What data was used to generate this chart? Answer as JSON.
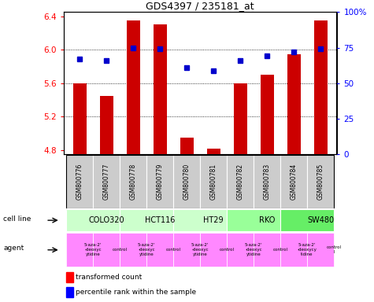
{
  "title": "GDS4397 / 235181_at",
  "samples": [
    "GSM800776",
    "GSM800777",
    "GSM800778",
    "GSM800779",
    "GSM800780",
    "GSM800781",
    "GSM800782",
    "GSM800783",
    "GSM800784",
    "GSM800785"
  ],
  "transformed_counts": [
    5.6,
    5.45,
    6.35,
    6.3,
    4.95,
    4.82,
    5.6,
    5.7,
    5.95,
    6.35
  ],
  "percentile_ranks": [
    67,
    66,
    75,
    74,
    61,
    59,
    66,
    69,
    72,
    74
  ],
  "ylim_left": [
    4.75,
    6.45
  ],
  "ylim_right": [
    0,
    100
  ],
  "yticks_left": [
    4.8,
    5.2,
    5.6,
    6.0,
    6.4
  ],
  "yticks_right": [
    0,
    25,
    50,
    75,
    100
  ],
  "cell_lines": [
    {
      "name": "COLO320",
      "span": [
        0,
        2
      ],
      "color": "#ccffcc"
    },
    {
      "name": "HCT116",
      "span": [
        2,
        4
      ],
      "color": "#ccffcc"
    },
    {
      "name": "HT29",
      "span": [
        4,
        6
      ],
      "color": "#ccffcc"
    },
    {
      "name": "RKO",
      "span": [
        6,
        8
      ],
      "color": "#99ff99"
    },
    {
      "name": "SW480",
      "span": [
        8,
        10
      ],
      "color": "#66ee66"
    }
  ],
  "agents": [
    {
      "name": "5-aza-2'\n-deoxyc\nytidine",
      "span": [
        0,
        1
      ],
      "color": "#ff88ff"
    },
    {
      "name": "control",
      "span": [
        1,
        2
      ],
      "color": "#ff88ff"
    },
    {
      "name": "5-aza-2'\n-deoxyc\nytidine",
      "span": [
        2,
        3
      ],
      "color": "#ff88ff"
    },
    {
      "name": "control",
      "span": [
        3,
        4
      ],
      "color": "#ff88ff"
    },
    {
      "name": "5-aza-2'\n-deoxyc\nytidine",
      "span": [
        4,
        5
      ],
      "color": "#ff88ff"
    },
    {
      "name": "control",
      "span": [
        5,
        6
      ],
      "color": "#ff88ff"
    },
    {
      "name": "5-aza-2'\n-deoxyc\nytidine",
      "span": [
        6,
        7
      ],
      "color": "#ff88ff"
    },
    {
      "name": "control",
      "span": [
        7,
        8
      ],
      "color": "#ff88ff"
    },
    {
      "name": "5-aza-2'\n-deoxycy\ntidine",
      "span": [
        8,
        9
      ],
      "color": "#ff88ff"
    },
    {
      "name": "control\nl",
      "span": [
        9,
        10
      ],
      "color": "#ff88ff"
    }
  ],
  "bar_color": "#cc0000",
  "dot_color": "#0000cc",
  "bar_width": 0.5,
  "sample_bg_color": "#cccccc",
  "legend_red": "transformed count",
  "legend_blue": "percentile rank within the sample"
}
